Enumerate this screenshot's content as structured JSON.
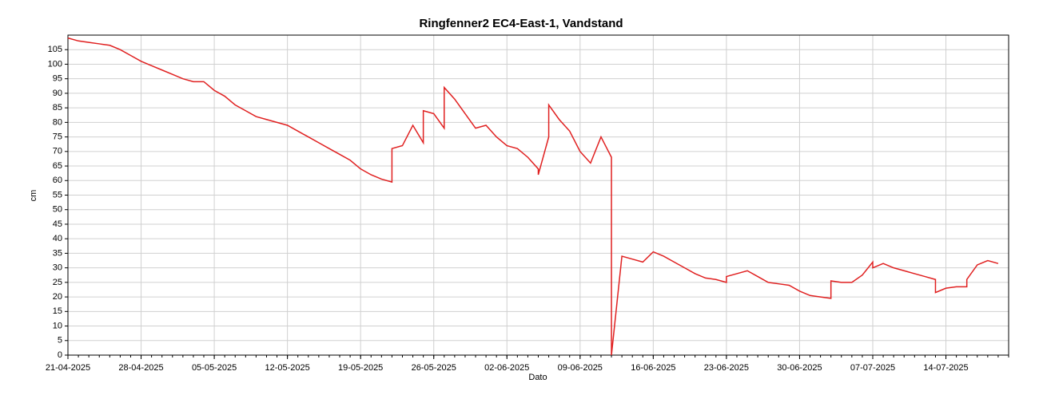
{
  "chart_data": {
    "type": "line",
    "title": "Ringfenner2 EC4-East-1, Vandstand",
    "ylabel": "cm",
    "xlabel": "Dato",
    "grid": true,
    "ylim": [
      0,
      110
    ],
    "yticks": [
      0,
      5,
      10,
      15,
      20,
      25,
      30,
      35,
      40,
      45,
      50,
      55,
      60,
      65,
      70,
      75,
      80,
      85,
      90,
      95,
      100,
      105
    ],
    "xlim": [
      "2025-04-21",
      "2025-07-20"
    ],
    "xticks": [
      {
        "value": "2025-04-21",
        "label": "21-04-2025"
      },
      {
        "value": "2025-04-28",
        "label": "28-04-2025"
      },
      {
        "value": "2025-05-05",
        "label": "05-05-2025"
      },
      {
        "value": "2025-05-12",
        "label": "12-05-2025"
      },
      {
        "value": "2025-05-19",
        "label": "19-05-2025"
      },
      {
        "value": "2025-05-26",
        "label": "26-05-2025"
      },
      {
        "value": "2025-06-02",
        "label": "02-06-2025"
      },
      {
        "value": "2025-06-09",
        "label": "09-06-2025"
      },
      {
        "value": "2025-06-16",
        "label": "16-06-2025"
      },
      {
        "value": "2025-06-23",
        "label": "23-06-2025"
      },
      {
        "value": "2025-06-30",
        "label": "30-06-2025"
      },
      {
        "value": "2025-07-07",
        "label": "07-07-2025"
      },
      {
        "value": "2025-07-14",
        "label": "14-07-2025"
      }
    ],
    "series": [
      {
        "color": "#e02020",
        "x": [
          "2025-04-21",
          "2025-04-22",
          "2025-04-23",
          "2025-04-24",
          "2025-04-25",
          "2025-04-26",
          "2025-04-27",
          "2025-04-28",
          "2025-04-29",
          "2025-04-30",
          "2025-05-01",
          "2025-05-02",
          "2025-05-03",
          "2025-05-04",
          "2025-05-05",
          "2025-05-06",
          "2025-05-07",
          "2025-05-08",
          "2025-05-09",
          "2025-05-10",
          "2025-05-11",
          "2025-05-12",
          "2025-05-13",
          "2025-05-14",
          "2025-05-15",
          "2025-05-16",
          "2025-05-17",
          "2025-05-18",
          "2025-05-19",
          "2025-05-20",
          "2025-05-21",
          "2025-05-22",
          "2025-05-22",
          "2025-05-23",
          "2025-05-24",
          "2025-05-25",
          "2025-05-25",
          "2025-05-26",
          "2025-05-27",
          "2025-05-27",
          "2025-05-28",
          "2025-05-29",
          "2025-05-30",
          "2025-05-31",
          "2025-06-01",
          "2025-06-02",
          "2025-06-03",
          "2025-06-04",
          "2025-06-05",
          "2025-06-05",
          "2025-06-06",
          "2025-06-06",
          "2025-06-07",
          "2025-06-08",
          "2025-06-09",
          "2025-06-10",
          "2025-06-11",
          "2025-06-12",
          "2025-06-12",
          "2025-06-13",
          "2025-06-14",
          "2025-06-15",
          "2025-06-16",
          "2025-06-17",
          "2025-06-18",
          "2025-06-19",
          "2025-06-20",
          "2025-06-21",
          "2025-06-22",
          "2025-06-23",
          "2025-06-23",
          "2025-06-24",
          "2025-06-25",
          "2025-06-26",
          "2025-06-27",
          "2025-06-28",
          "2025-06-29",
          "2025-06-30",
          "2025-07-01",
          "2025-07-02",
          "2025-07-03",
          "2025-07-03",
          "2025-07-04",
          "2025-07-05",
          "2025-07-06",
          "2025-07-07",
          "2025-07-07",
          "2025-07-08",
          "2025-07-09",
          "2025-07-10",
          "2025-07-11",
          "2025-07-12",
          "2025-07-13",
          "2025-07-13",
          "2025-07-14",
          "2025-07-15",
          "2025-07-16",
          "2025-07-16",
          "2025-07-17",
          "2025-07-18",
          "2025-07-19"
        ],
        "values": [
          109,
          108,
          107.5,
          107,
          106.5,
          105,
          103,
          101,
          99.5,
          98,
          96.5,
          95,
          94,
          94,
          91,
          89,
          86,
          84,
          82,
          81,
          80,
          79,
          77,
          75,
          73,
          71,
          69,
          67,
          64,
          62,
          60.5,
          59.5,
          71,
          72,
          79,
          73,
          84,
          83,
          78,
          92,
          88,
          83,
          78,
          79,
          75,
          72,
          71,
          68,
          64,
          62,
          75,
          86,
          81,
          77,
          70,
          66,
          75,
          68,
          0,
          34,
          33,
          32,
          35.5,
          34,
          32,
          30,
          28,
          26.5,
          26,
          25,
          27,
          28,
          29,
          27,
          25,
          24.5,
          24,
          22,
          20.5,
          20,
          19.5,
          25.5,
          25,
          25,
          27.5,
          32,
          30,
          31.5,
          30,
          29,
          28,
          27,
          26,
          21.5,
          23,
          23.5,
          23.5,
          26,
          31,
          32.5,
          31.5
        ]
      }
    ]
  }
}
